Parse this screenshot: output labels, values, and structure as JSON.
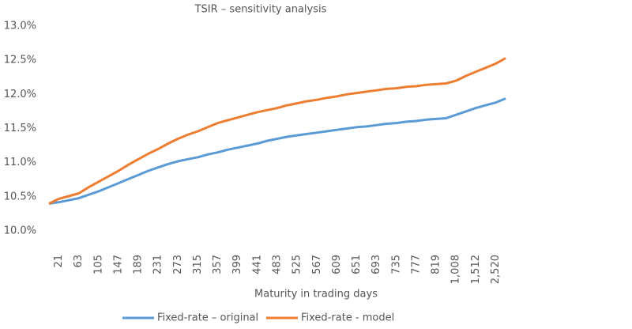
{
  "chart_data": {
    "type": "line",
    "title": "TSIR – sensitivity analysis",
    "x_label": "Maturity in trading days",
    "categories": [
      null,
      "21",
      null,
      "63",
      null,
      "105",
      null,
      "147",
      null,
      "189",
      null,
      "231",
      null,
      "273",
      null,
      "315",
      null,
      "357",
      null,
      "399",
      null,
      "441",
      null,
      "483",
      null,
      "525",
      null,
      "567",
      null,
      "609",
      null,
      "651",
      null,
      "693",
      null,
      "735",
      null,
      "777",
      null,
      "819",
      null,
      "1,008",
      null,
      "1,512",
      null,
      "2,520",
      null
    ],
    "series": [
      {
        "name": "Fixed-rate – original",
        "color": "#5b9bd5",
        "values": [
          10.4,
          10.42,
          10.45,
          10.48,
          10.53,
          10.58,
          10.64,
          10.7,
          10.76,
          10.82,
          10.88,
          10.93,
          10.98,
          11.02,
          11.05,
          11.08,
          11.12,
          11.15,
          11.19,
          11.22,
          11.25,
          11.28,
          11.32,
          11.35,
          11.38,
          11.4,
          11.42,
          11.44,
          11.46,
          11.48,
          11.5,
          11.52,
          11.53,
          11.55,
          11.57,
          11.58,
          11.6,
          11.61,
          11.63,
          11.64,
          11.65,
          11.7,
          11.75,
          11.8,
          11.84,
          11.88,
          11.94
        ]
      },
      {
        "name": "Fixed-rate - model",
        "color": "#ed7d31",
        "values": [
          10.4,
          10.47,
          10.51,
          10.55,
          10.64,
          10.72,
          10.8,
          10.88,
          10.97,
          11.05,
          11.13,
          11.2,
          11.28,
          11.35,
          11.41,
          11.46,
          11.52,
          11.58,
          11.62,
          11.66,
          11.7,
          11.74,
          11.77,
          11.8,
          11.84,
          11.87,
          11.9,
          11.92,
          11.95,
          11.97,
          12.0,
          12.02,
          12.04,
          12.06,
          12.08,
          12.09,
          12.11,
          12.12,
          12.14,
          12.15,
          12.16,
          12.2,
          12.27,
          12.33,
          12.39,
          12.45,
          12.53
        ]
      }
    ],
    "ylim": [
      10,
      13
    ],
    "yticks": [
      {
        "value": 10,
        "label": "10.0%"
      },
      {
        "value": 10.5,
        "label": "10.5%"
      },
      {
        "value": 11,
        "label": "11.0%"
      },
      {
        "value": 11.5,
        "label": "11.5%"
      },
      {
        "value": 12,
        "label": "12.0%"
      },
      {
        "value": 12.5,
        "label": "12.5%"
      },
      {
        "value": 13,
        "label": "13.0%"
      }
    ],
    "grid": false,
    "legend": "bottom"
  }
}
